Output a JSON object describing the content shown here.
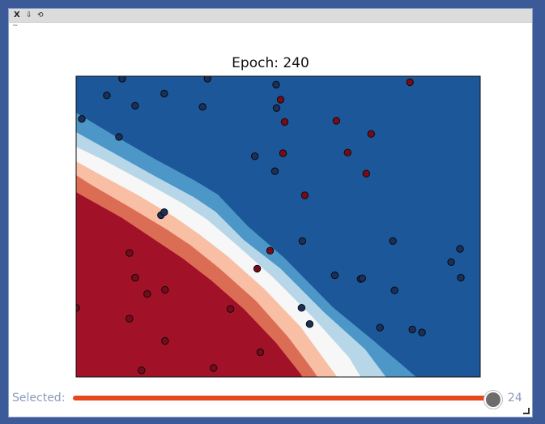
{
  "toolbar": {
    "close_label": "X",
    "download_label": "⇩",
    "reset_label": "⟲",
    "tilde": "~"
  },
  "slider": {
    "label": "Selected:",
    "value": "24",
    "fraction": 1.0
  },
  "chart_data": {
    "type": "scatter",
    "title": "Epoch: 240",
    "xlim": [
      0,
      1
    ],
    "ylim": [
      0,
      1
    ],
    "grid": false,
    "colors": {
      "class0": "#1a2f5a",
      "class1": "#7a0a1a",
      "region_blue_dark": "#1c5899",
      "region_blue_mid": "#4c97c8",
      "region_blue_light": "#b7d7e8",
      "region_white": "#f7f7f7",
      "region_red_light": "#f8bfa5",
      "region_red_mid": "#dc6d55",
      "region_red_dark": "#a11228"
    },
    "series": [
      {
        "points": [
          [
            0.114,
            0.992
          ],
          [
            0.325,
            0.992
          ],
          [
            0.495,
            0.972
          ],
          [
            0.076,
            0.936
          ],
          [
            0.218,
            0.942
          ],
          [
            0.146,
            0.902
          ],
          [
            0.313,
            0.898
          ],
          [
            0.496,
            0.894
          ],
          [
            0.014,
            0.858
          ],
          [
            0.106,
            0.798
          ],
          [
            0.442,
            0.734
          ],
          [
            0.492,
            0.684
          ],
          [
            0.21,
            0.538
          ],
          [
            0.218,
            0.548
          ],
          [
            0.56,
            0.452
          ],
          [
            0.784,
            0.452
          ],
          [
            0.95,
            0.426
          ],
          [
            0.928,
            0.382
          ],
          [
            0.64,
            0.338
          ],
          [
            0.704,
            0.326
          ],
          [
            0.708,
            0.328
          ],
          [
            0.788,
            0.288
          ],
          [
            0.952,
            0.33
          ],
          [
            0.558,
            0.23
          ],
          [
            0.578,
            0.176
          ],
          [
            0.752,
            0.164
          ],
          [
            0.832,
            0.158
          ],
          [
            0.856,
            0.148
          ]
        ]
      },
      {
        "points": [
          [
            0.826,
            0.98
          ],
          [
            0.506,
            0.922
          ],
          [
            0.516,
            0.848
          ],
          [
            0.644,
            0.852
          ],
          [
            0.73,
            0.808
          ],
          [
            0.512,
            0.744
          ],
          [
            0.672,
            0.746
          ],
          [
            0.718,
            0.676
          ],
          [
            0.566,
            0.604
          ],
          [
            0.48,
            0.42
          ],
          [
            0.448,
            0.36
          ],
          [
            0.132,
            0.412
          ],
          [
            0.146,
            0.33
          ],
          [
            0.176,
            0.276
          ],
          [
            0.22,
            0.29
          ],
          [
            0.0,
            0.23
          ],
          [
            0.382,
            0.226
          ],
          [
            0.132,
            0.194
          ],
          [
            0.22,
            0.12
          ],
          [
            0.456,
            0.082
          ],
          [
            0.34,
            0.03
          ],
          [
            0.162,
            0.022
          ]
        ]
      }
    ]
  }
}
